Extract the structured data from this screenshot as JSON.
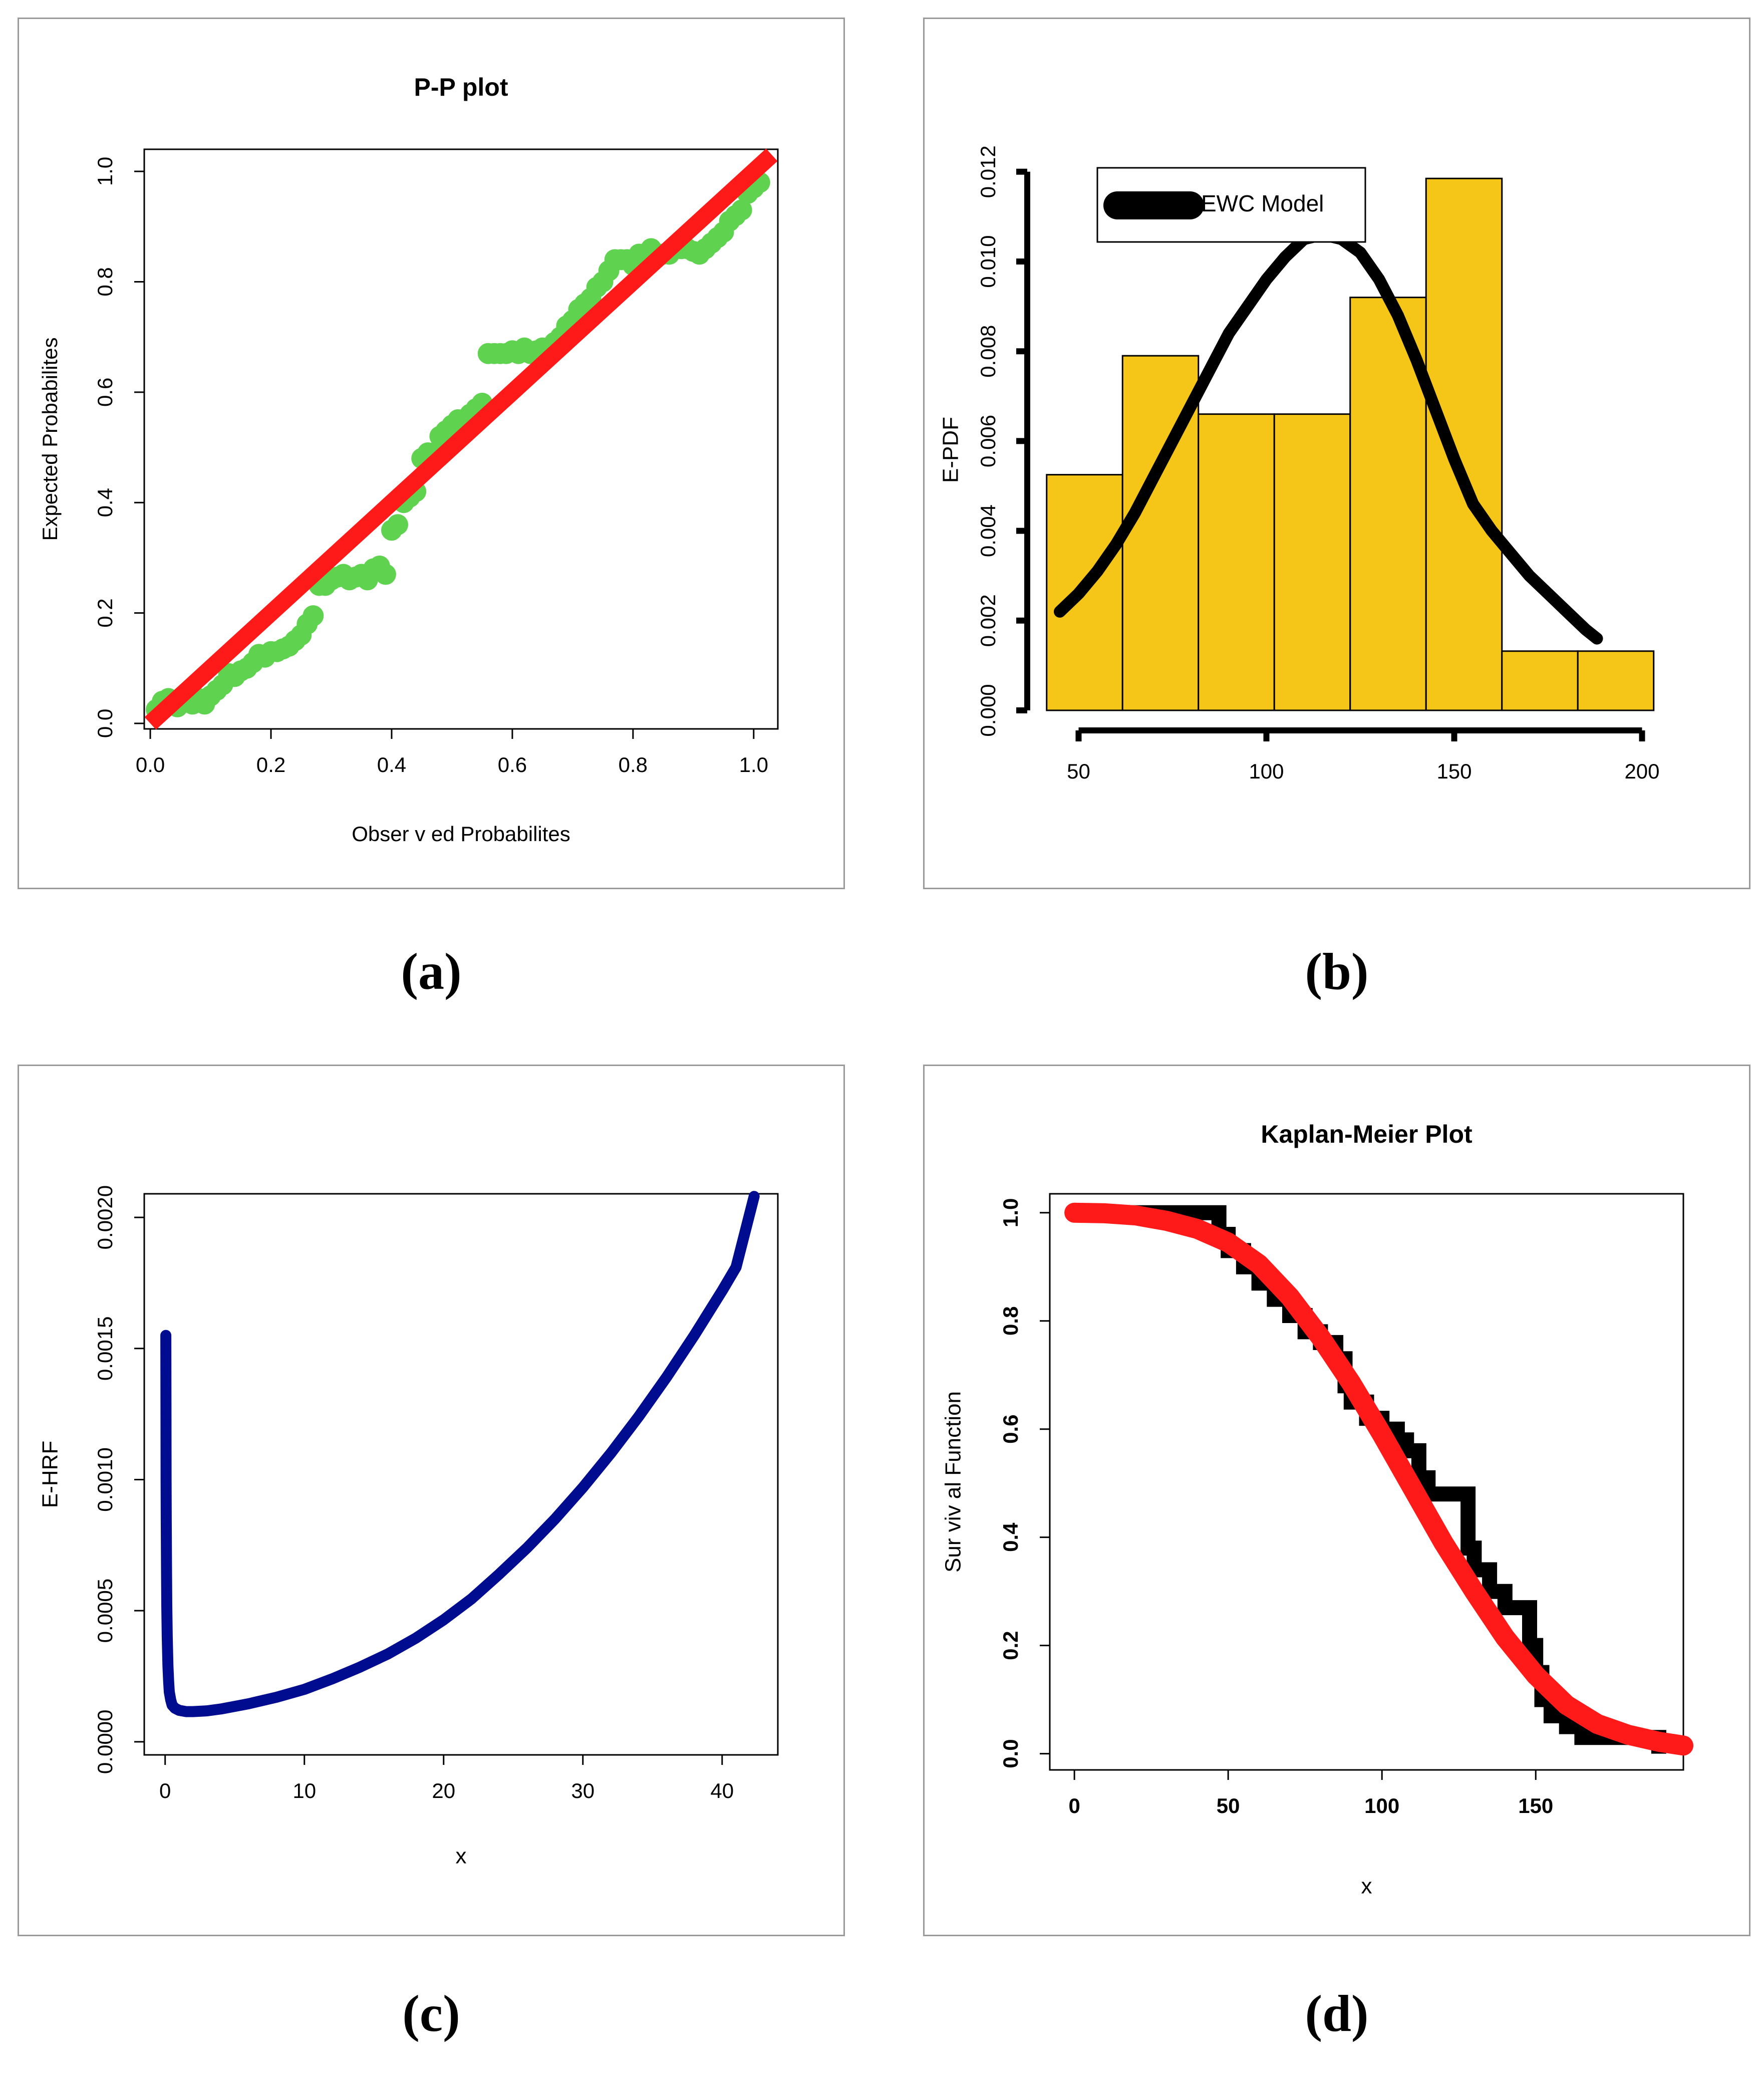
{
  "captions": [
    "(a)",
    "(b)",
    "(c)",
    "(d)"
  ],
  "colors": {
    "pp_points": "#5fd34f",
    "pp_line": "#ff1a1a",
    "hist_fill": "#f5c518",
    "hist_curve": "#000000",
    "hrf_curve": "#000c8f",
    "km_step": "#000000",
    "km_fit": "#ff1a1a"
  },
  "chart_data": [
    {
      "id": "a",
      "type": "scatter",
      "title": "P-P plot",
      "xlabel": "Obser      v ed Probabilites",
      "ylabel": "Expected Probabilites",
      "xlim": [
        0,
        1
      ],
      "ylim": [
        0,
        1
      ],
      "xticks": [
        "0.0",
        "0.2",
        "0.4",
        "0.6",
        "0.8",
        "1.0"
      ],
      "yticks": [
        "0.0",
        "0.2",
        "0.4",
        "0.6",
        "0.8",
        "1.0"
      ],
      "series": [
        {
          "type": "scatter",
          "x": [
            0.01,
            0.02,
            0.03,
            0.045,
            0.06,
            0.07,
            0.08,
            0.09,
            0.1,
            0.11,
            0.12,
            0.13,
            0.14,
            0.15,
            0.16,
            0.17,
            0.18,
            0.19,
            0.2,
            0.21,
            0.22,
            0.23,
            0.24,
            0.25,
            0.26,
            0.27,
            0.28,
            0.29,
            0.3,
            0.31,
            0.32,
            0.33,
            0.34,
            0.35,
            0.36,
            0.37,
            0.38,
            0.39,
            0.4,
            0.41,
            0.42,
            0.43,
            0.44,
            0.45,
            0.46,
            0.47,
            0.48,
            0.49,
            0.5,
            0.51,
            0.52,
            0.53,
            0.54,
            0.55,
            0.56,
            0.57,
            0.58,
            0.59,
            0.6,
            0.61,
            0.62,
            0.63,
            0.64,
            0.65,
            0.66,
            0.67,
            0.68,
            0.69,
            0.7,
            0.71,
            0.72,
            0.73,
            0.74,
            0.75,
            0.76,
            0.77,
            0.78,
            0.79,
            0.8,
            0.81,
            0.82,
            0.83,
            0.84,
            0.85,
            0.86,
            0.87,
            0.88,
            0.89,
            0.9,
            0.91,
            0.92,
            0.93,
            0.94,
            0.95,
            0.96,
            0.97,
            0.98,
            0.99,
            1.0,
            1.01
          ],
          "y": [
            0.025,
            0.04,
            0.045,
            0.03,
            0.04,
            0.035,
            0.045,
            0.035,
            0.05,
            0.06,
            0.07,
            0.09,
            0.085,
            0.095,
            0.1,
            0.11,
            0.125,
            0.12,
            0.13,
            0.13,
            0.135,
            0.14,
            0.15,
            0.16,
            0.18,
            0.195,
            0.25,
            0.25,
            0.26,
            0.265,
            0.27,
            0.26,
            0.265,
            0.27,
            0.26,
            0.28,
            0.285,
            0.27,
            0.35,
            0.36,
            0.4,
            0.41,
            0.42,
            0.48,
            0.49,
            0.49,
            0.52,
            0.53,
            0.54,
            0.55,
            0.55,
            0.56,
            0.57,
            0.58,
            0.67,
            0.67,
            0.67,
            0.67,
            0.675,
            0.67,
            0.68,
            0.67,
            0.675,
            0.68,
            0.68,
            0.69,
            0.7,
            0.72,
            0.73,
            0.75,
            0.76,
            0.77,
            0.79,
            0.8,
            0.82,
            0.84,
            0.84,
            0.84,
            0.83,
            0.85,
            0.83,
            0.86,
            0.85,
            0.85,
            0.85,
            0.86,
            0.86,
            0.86,
            0.855,
            0.85,
            0.86,
            0.87,
            0.88,
            0.89,
            0.91,
            0.92,
            0.93,
            0.96,
            0.97,
            0.98
          ]
        },
        {
          "type": "line",
          "x": [
            0,
            1.03
          ],
          "y": [
            0,
            1.03
          ]
        }
      ]
    },
    {
      "id": "b",
      "type": "bar",
      "xlabel": "",
      "ylabel": "E-PDF",
      "xlim": [
        43,
        205
      ],
      "ylim": [
        0,
        0.0125
      ],
      "xticks": [
        "50",
        "100",
        "150",
        "200"
      ],
      "yticks": [
        "0.000",
        "0.002",
        "0.004",
        "0.006",
        "0.008",
        "0.010",
        "0.012"
      ],
      "legend": {
        "label": "EWC Model",
        "position": "top-left"
      },
      "bins": [
        {
          "from": 41.5,
          "to": 61.7,
          "value": 0.00525
        },
        {
          "from": 61.7,
          "to": 81.9,
          "value": 0.0079
        },
        {
          "from": 81.9,
          "to": 102.1,
          "value": 0.0066
        },
        {
          "from": 102.1,
          "to": 122.3,
          "value": 0.0066
        },
        {
          "from": 122.3,
          "to": 142.5,
          "value": 0.0092
        },
        {
          "from": 142.5,
          "to": 162.7,
          "value": 0.01185
        },
        {
          "from": 162.7,
          "to": 182.9,
          "value": 0.00132
        },
        {
          "from": 182.9,
          "to": 203.1,
          "value": 0.00132
        }
      ],
      "curve": {
        "x": [
          45,
          50,
          55,
          60,
          65,
          70,
          75,
          80,
          85,
          90,
          95,
          100,
          105,
          110,
          115,
          120,
          125,
          130,
          135,
          140,
          145,
          150,
          155,
          160,
          165,
          170,
          175,
          180,
          185,
          188
        ],
        "y": [
          0.0022,
          0.0026,
          0.0031,
          0.0037,
          0.0044,
          0.0052,
          0.006,
          0.0068,
          0.0076,
          0.0084,
          0.009,
          0.0096,
          0.0101,
          0.0105,
          0.0106,
          0.0105,
          0.0102,
          0.0096,
          0.0088,
          0.0078,
          0.0067,
          0.0056,
          0.0046,
          0.004,
          0.0035,
          0.003,
          0.0026,
          0.0022,
          0.0018,
          0.0016
        ]
      }
    },
    {
      "id": "c",
      "type": "line",
      "xlabel": "x",
      "ylabel": "E-HRF",
      "xlim": [
        -1.5,
        44
      ],
      "ylim": [
        -5e-05,
        0.00209
      ],
      "xticks": [
        "0",
        "10",
        "20",
        "30",
        "40"
      ],
      "yticks": [
        "0.0000",
        "0.0005",
        "0.0010",
        "0.0015",
        "0.0020"
      ],
      "series": [
        {
          "x": [
            0.05,
            0.06,
            0.07,
            0.08,
            0.1,
            0.12,
            0.15,
            0.2,
            0.25,
            0.3,
            0.4,
            0.5,
            0.7,
            1.0,
            1.5,
            2,
            3,
            4,
            5,
            6,
            8,
            10,
            12,
            14,
            16,
            18,
            20,
            22,
            24,
            26,
            28,
            30,
            32,
            34,
            36,
            38,
            40,
            41,
            42.3
          ],
          "y": [
            0.00155,
            0.00125,
            0.001,
            0.00085,
            0.00065,
            0.00052,
            0.0004,
            0.00029,
            0.00023,
            0.00019,
            0.00016,
            0.00014,
            0.000128,
            0.00012,
            0.000115,
            0.000115,
            0.000118,
            0.000125,
            0.000135,
            0.000145,
            0.00017,
            0.0002,
            0.00024,
            0.000285,
            0.000335,
            0.000395,
            0.000465,
            0.000545,
            0.00064,
            0.00074,
            0.00085,
            0.00097,
            0.0011,
            0.00124,
            0.00139,
            0.00155,
            0.00172,
            0.00181,
            0.00208
          ]
        }
      ]
    },
    {
      "id": "d",
      "type": "line",
      "title": "Kaplan-Meier Plot",
      "xlabel": "x",
      "ylabel": "Sur viv al Function",
      "xlim": [
        -8,
        198
      ],
      "ylim": [
        -0.03,
        1.035
      ],
      "xticks": [
        "0",
        "50",
        "100",
        "150"
      ],
      "yticks": [
        "0.0",
        "0.2",
        "0.4",
        "0.6",
        "0.8",
        "1.0"
      ],
      "series": [
        {
          "name": "",
          "step_x": [
            0,
            45,
            47,
            50,
            55,
            60,
            65,
            70,
            75,
            80,
            85,
            88,
            90,
            95,
            100,
            105,
            108,
            112,
            115,
            118,
            120,
            125,
            128,
            130,
            135,
            140,
            145,
            148,
            150,
            152,
            155,
            160,
            165,
            170,
            180,
            190
          ],
          "step_y": [
            1.0,
            1.0,
            0.96,
            0.93,
            0.9,
            0.87,
            0.84,
            0.81,
            0.78,
            0.76,
            0.73,
            0.68,
            0.65,
            0.62,
            0.6,
            0.58,
            0.56,
            0.51,
            0.48,
            0.48,
            0.48,
            0.48,
            0.38,
            0.34,
            0.3,
            0.27,
            0.27,
            0.2,
            0.15,
            0.1,
            0.07,
            0.05,
            0.03,
            0.03,
            0.03,
            0.0
          ]
        },
        {
          "name": "",
          "x": [
            0,
            10,
            20,
            30,
            40,
            50,
            60,
            70,
            80,
            90,
            100,
            110,
            120,
            130,
            140,
            150,
            160,
            170,
            180,
            190,
            198
          ],
          "y": [
            1.0,
            0.999,
            0.995,
            0.985,
            0.97,
            0.945,
            0.905,
            0.845,
            0.77,
            0.685,
            0.59,
            0.49,
            0.39,
            0.3,
            0.215,
            0.145,
            0.09,
            0.055,
            0.035,
            0.022,
            0.015
          ]
        }
      ]
    }
  ]
}
